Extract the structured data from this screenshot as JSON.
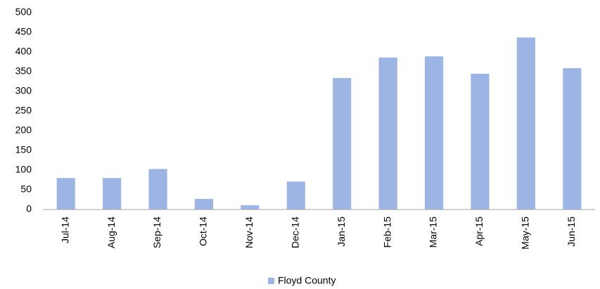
{
  "chart_data": {
    "type": "bar",
    "categories": [
      "Jul-14",
      "Aug-14",
      "Sep-14",
      "Oct-14",
      "Nov-14",
      "Dec-14",
      "Jan-15",
      "Feb-15",
      "Mar-15",
      "Apr-15",
      "May-15",
      "Jun-15"
    ],
    "series": [
      {
        "name": "Floyd County",
        "color": "#9db5e4",
        "values": [
          80,
          80,
          103,
          27,
          11,
          71,
          334,
          386,
          389,
          345,
          437,
          359
        ]
      }
    ],
    "ylim": [
      0,
      500
    ],
    "yticks": [
      0,
      50,
      100,
      150,
      200,
      250,
      300,
      350,
      400,
      450,
      500
    ],
    "grid": false,
    "legend": "bottom"
  }
}
